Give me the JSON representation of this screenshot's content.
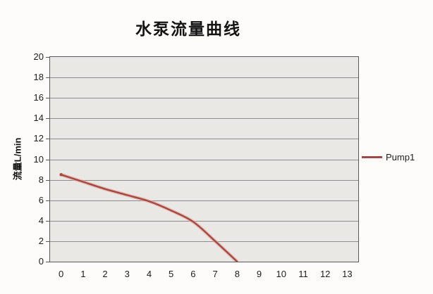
{
  "chart": {
    "title": "水泵流量曲线",
    "y_axis_title": "流量L/min",
    "legend": {
      "label": "Pump1"
    }
  },
  "chart_data": {
    "type": "line",
    "title": "水泵流量曲线",
    "xlabel": "",
    "ylabel": "流量L/min",
    "categories": [
      0,
      1,
      2,
      3,
      4,
      5,
      6,
      7,
      8,
      9,
      10,
      11,
      12,
      13
    ],
    "xticks": [
      0,
      1,
      2,
      3,
      4,
      5,
      6,
      7,
      8,
      9,
      10,
      11,
      12,
      13
    ],
    "yticks": [
      0,
      2,
      4,
      6,
      8,
      10,
      12,
      14,
      16,
      18,
      20
    ],
    "ylim": [
      0,
      20
    ],
    "grid": "horizontal",
    "legend_position": "right",
    "series": [
      {
        "name": "Pump1",
        "x": [
          0,
          1,
          2,
          3,
          4,
          5,
          6,
          7,
          8
        ],
        "values": [
          8.5,
          7.8,
          7.1,
          6.5,
          5.9,
          5.0,
          3.9,
          2.0,
          0.0
        ],
        "color": "#A6493F",
        "halo_color": "#E3A49F"
      }
    ],
    "colors": {
      "plot_background": "#E9E8E5",
      "plot_border": "#595959",
      "gridline": "#8C8C8C",
      "legend_line": "#9E4A44",
      "text": "#1d1d1d"
    }
  }
}
